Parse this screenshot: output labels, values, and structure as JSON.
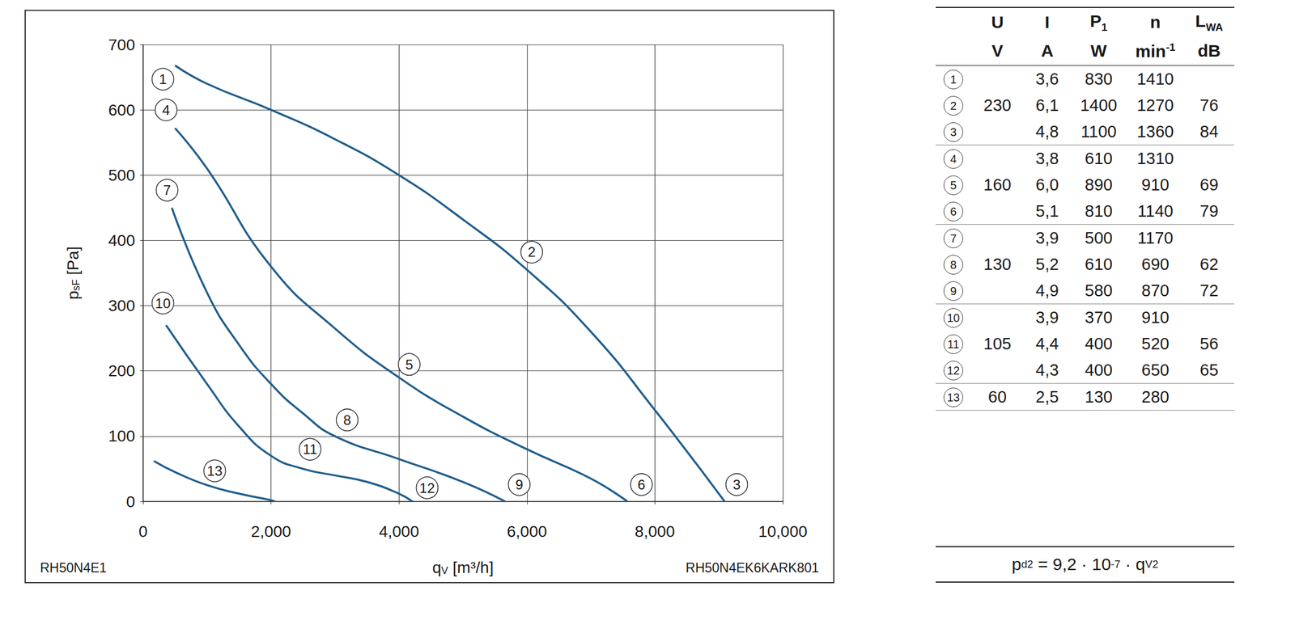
{
  "chart_data": {
    "type": "line",
    "xlabel": {
      "main": "q",
      "sub": "V",
      "unit": "[m³/h]"
    },
    "ylabel": {
      "main": "p",
      "sub": "sF",
      "unit": "[Pa]"
    },
    "xlim": [
      0,
      10000
    ],
    "xticks": [
      0,
      2000,
      4000,
      6000,
      8000,
      10000
    ],
    "ylim": [
      0,
      700
    ],
    "yticks": [
      0,
      100,
      200,
      300,
      400,
      500,
      600,
      700
    ],
    "grid": true,
    "series": [
      {
        "color": "#1f5d8c",
        "x": [
          500,
          1000,
          2000,
          3000,
          4000,
          5000,
          6000,
          7000,
          8000,
          9090
        ],
        "values": [
          668,
          640,
          600,
          555,
          500,
          432,
          355,
          260,
          140,
          0
        ]
      },
      {
        "color": "#1f5d8c",
        "x": [
          500,
          1000,
          2000,
          3000,
          4000,
          5000,
          6000,
          7000,
          7570
        ],
        "values": [
          572,
          510,
          360,
          265,
          190,
          130,
          80,
          35,
          0
        ]
      },
      {
        "color": "#1f5d8c",
        "x": [
          450,
          1000,
          1500,
          2000,
          2500,
          3000,
          4000,
          5000,
          5660
        ],
        "values": [
          450,
          320,
          240,
          180,
          135,
          100,
          65,
          30,
          0
        ]
      },
      {
        "color": "#1f5d8c",
        "x": [
          360,
          1000,
          1500,
          2000,
          2500,
          3000,
          3500,
          4000,
          4210
        ],
        "values": [
          270,
          180,
          115,
          70,
          50,
          40,
          30,
          12,
          0
        ]
      },
      {
        "color": "#1f5d8c",
        "x": [
          170,
          500,
          1000,
          1500,
          2000,
          2060
        ],
        "values": [
          62,
          45,
          25,
          12,
          2,
          0
        ]
      }
    ],
    "annotations": [
      {
        "text": "1",
        "x": 310,
        "y": 647
      },
      {
        "text": "2",
        "x": 6075,
        "y": 382
      },
      {
        "text": "3",
        "x": 9280,
        "y": 26
      },
      {
        "text": "4",
        "x": 360,
        "y": 600
      },
      {
        "text": "5",
        "x": 4160,
        "y": 210
      },
      {
        "text": "6",
        "x": 7790,
        "y": 26
      },
      {
        "text": "7",
        "x": 375,
        "y": 477
      },
      {
        "text": "8",
        "x": 3190,
        "y": 125
      },
      {
        "text": "9",
        "x": 5880,
        "y": 26
      },
      {
        "text": "10",
        "x": 310,
        "y": 304
      },
      {
        "text": "11",
        "x": 2610,
        "y": 80
      },
      {
        "text": "12",
        "x": 4440,
        "y": 21
      },
      {
        "text": "13",
        "x": 1120,
        "y": 47
      }
    ]
  },
  "captions": {
    "left": "RH50N4E1",
    "right": "RH50N4EK6KARK801"
  },
  "table": {
    "header": [
      {
        "main": "U"
      },
      {
        "main": "I"
      },
      {
        "main": "P",
        "sub": "1"
      },
      {
        "main": "n"
      },
      {
        "main": "L",
        "sub": "WA"
      }
    ],
    "units": [
      {
        "main": "V"
      },
      {
        "main": "A"
      },
      {
        "main": "W"
      },
      {
        "main": "min",
        "sup": "-1"
      },
      {
        "main": "dB"
      }
    ],
    "groups": [
      {
        "U": "230",
        "rows": [
          [
            "1",
            "3,6",
            "830",
            "1410",
            null
          ],
          [
            "2",
            "6,1",
            "1400",
            "1270",
            "76"
          ],
          [
            "3",
            "4,8",
            "1100",
            "1360",
            "84"
          ]
        ]
      },
      {
        "U": "160",
        "rows": [
          [
            "4",
            "3,8",
            "610",
            "1310",
            null
          ],
          [
            "5",
            "6,0",
            "890",
            "910",
            "69"
          ],
          [
            "6",
            "5,1",
            "810",
            "1140",
            "79"
          ]
        ]
      },
      {
        "U": "130",
        "rows": [
          [
            "7",
            "3,9",
            "500",
            "1170",
            null
          ],
          [
            "8",
            "5,2",
            "610",
            "690",
            "62"
          ],
          [
            "9",
            "4,9",
            "580",
            "870",
            "72"
          ]
        ]
      },
      {
        "U": "105",
        "rows": [
          [
            "10",
            "3,9",
            "370",
            "910",
            null
          ],
          [
            "11",
            "4,4",
            "400",
            "520",
            "56"
          ],
          [
            "12",
            "4,3",
            "400",
            "650",
            "65"
          ]
        ]
      },
      {
        "U": "60",
        "rows": [
          [
            "13",
            "2,5",
            "130",
            "280",
            null
          ]
        ]
      }
    ]
  },
  "formula": [
    {
      "t": "p"
    },
    {
      "sub": "d2"
    },
    {
      "t": " = 9,2 · 10"
    },
    {
      "sup": "-7"
    },
    {
      "t": " · q"
    },
    {
      "sub": "V"
    },
    {
      "sup": "2"
    }
  ]
}
